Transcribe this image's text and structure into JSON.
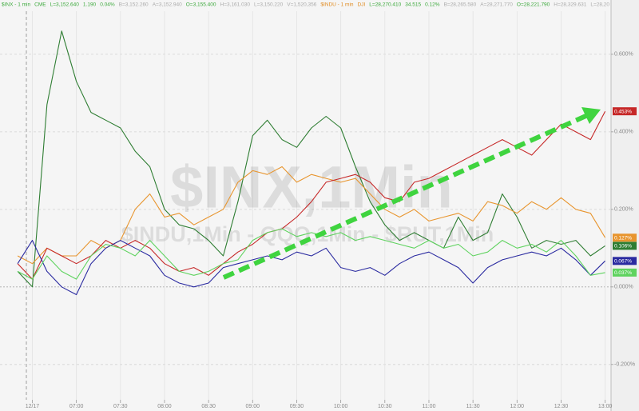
{
  "chart_data": {
    "type": "line",
    "header": [
      {
        "text": "$INX - 1 min",
        "color": "#3aa83a"
      },
      {
        "text": "CME",
        "color": "#3aa83a"
      },
      {
        "text": "L=3,152.640",
        "color": "#3aa83a"
      },
      {
        "text": "1.190",
        "color": "#3aa83a"
      },
      {
        "text": "0.04%",
        "color": "#3aa83a"
      },
      {
        "text": "B=3,152.260",
        "color": "#aaaaaa"
      },
      {
        "text": "A=3,152.940",
        "color": "#aaaaaa"
      },
      {
        "text": "O=3,155.400",
        "color": "#3aa83a"
      },
      {
        "text": "H=3,161.030",
        "color": "#aaaaaa"
      },
      {
        "text": "L=3,150.220",
        "color": "#aaaaaa"
      },
      {
        "text": "V=1,520,356",
        "color": "#aaaaaa"
      },
      {
        "text": "$INDU - 1 min",
        "color": "#e08a1e"
      },
      {
        "text": "DJI",
        "color": "#e08a1e"
      },
      {
        "text": "L=28,270.410",
        "color": "#3aa83a"
      },
      {
        "text": "34.515",
        "color": "#3aa83a"
      },
      {
        "text": "0.12%",
        "color": "#3aa83a"
      },
      {
        "text": "B=28,265.580",
        "color": "#aaaaaa"
      },
      {
        "text": "A=28,271.770",
        "color": "#aaaaaa"
      },
      {
        "text": "O=28,221.790",
        "color": "#3aa83a"
      },
      {
        "text": "H=28,329.631",
        "color": "#aaaaaa"
      },
      {
        "text": "L=28,20",
        "color": "#aaaaaa"
      }
    ],
    "watermark": "$INX,1Min",
    "watermark_sub": "$INDU,1Min - QQQ,1Min - $RUT,1Min",
    "x": [
      380,
      390,
      400,
      410,
      420,
      430,
      440,
      450,
      460,
      470,
      480,
      490,
      500,
      510,
      520,
      530,
      540,
      550,
      560,
      570,
      580,
      590,
      600,
      610,
      620,
      630,
      640,
      650,
      660,
      670,
      680,
      690,
      700,
      710,
      720,
      730,
      740,
      750,
      760,
      770,
      780
    ],
    "xlim": [
      368,
      784
    ],
    "xticks": [
      {
        "value": 390,
        "label": "12/17"
      },
      {
        "value": 420,
        "label": "07:00"
      },
      {
        "value": 450,
        "label": "07:30"
      },
      {
        "value": 480,
        "label": "08:00"
      },
      {
        "value": 510,
        "label": "08:30"
      },
      {
        "value": 540,
        "label": "09:00"
      },
      {
        "value": 570,
        "label": "09:30"
      },
      {
        "value": 600,
        "label": "10:00"
      },
      {
        "value": 630,
        "label": "10:30"
      },
      {
        "value": 660,
        "label": "11:00"
      },
      {
        "value": 690,
        "label": "11:30"
      },
      {
        "value": 720,
        "label": "12:00"
      },
      {
        "value": 750,
        "label": "12:30"
      },
      {
        "value": 780,
        "label": "13:00"
      }
    ],
    "ylim": [
      -0.32,
      0.74
    ],
    "yticks": [
      {
        "value": -0.2,
        "label": "-0.200%"
      },
      {
        "value": 0,
        "label": "0.000%"
      },
      {
        "value": 0.2,
        "label": "0.200%"
      },
      {
        "value": 0.4,
        "label": "0.400%"
      },
      {
        "value": 0.6,
        "label": "0.600%"
      }
    ],
    "grid": true,
    "series": [
      {
        "color": "#2e7d32",
        "end_label": "0.106%",
        "values": [
          0.04,
          0.0,
          0.47,
          0.66,
          0.53,
          0.45,
          0.43,
          0.41,
          0.35,
          0.31,
          0.2,
          0.16,
          0.15,
          0.12,
          0.08,
          0.22,
          0.39,
          0.43,
          0.38,
          0.36,
          0.41,
          0.44,
          0.41,
          0.31,
          0.22,
          0.16,
          0.12,
          0.14,
          0.12,
          0.1,
          0.18,
          0.12,
          0.14,
          0.24,
          0.18,
          0.1,
          0.12,
          0.11,
          0.12,
          0.08,
          0.106
        ]
      },
      {
        "color": "#e8952e",
        "end_label": "0.127%",
        "values": [
          0.08,
          0.06,
          0.1,
          0.08,
          0.08,
          0.12,
          0.1,
          0.12,
          0.2,
          0.24,
          0.18,
          0.19,
          0.16,
          0.18,
          0.2,
          0.27,
          0.3,
          0.29,
          0.31,
          0.27,
          0.29,
          0.28,
          0.27,
          0.28,
          0.24,
          0.2,
          0.18,
          0.2,
          0.17,
          0.18,
          0.19,
          0.17,
          0.22,
          0.21,
          0.19,
          0.22,
          0.2,
          0.23,
          0.2,
          0.19,
          0.127
        ]
      },
      {
        "color": "#c62828",
        "end_label": "0.453%",
        "values": [
          0.06,
          0.02,
          0.1,
          0.08,
          0.06,
          0.08,
          0.12,
          0.1,
          0.12,
          0.1,
          0.06,
          0.04,
          0.05,
          0.03,
          0.06,
          0.09,
          0.11,
          0.14,
          0.15,
          0.18,
          0.22,
          0.27,
          0.28,
          0.29,
          0.27,
          0.23,
          0.22,
          0.27,
          0.28,
          0.3,
          0.32,
          0.34,
          0.36,
          0.38,
          0.36,
          0.34,
          0.38,
          0.42,
          0.4,
          0.38,
          0.453
        ]
      },
      {
        "color": "#2a2aa0",
        "end_label": "0.067%",
        "values": [
          0.06,
          0.12,
          0.04,
          0.0,
          -0.02,
          0.06,
          0.1,
          0.12,
          0.1,
          0.08,
          0.03,
          0.01,
          0.0,
          0.01,
          0.05,
          0.06,
          0.07,
          0.08,
          0.07,
          0.09,
          0.08,
          0.1,
          0.05,
          0.04,
          0.05,
          0.03,
          0.06,
          0.08,
          0.09,
          0.07,
          0.05,
          0.01,
          0.05,
          0.07,
          0.08,
          0.09,
          0.08,
          0.1,
          0.07,
          0.03,
          0.067
        ]
      },
      {
        "color": "#5fd35f",
        "end_label": "0.037%",
        "values": [
          0.04,
          0.02,
          0.08,
          0.04,
          0.02,
          0.08,
          0.11,
          0.1,
          0.08,
          0.12,
          0.08,
          0.04,
          0.03,
          0.04,
          0.06,
          0.07,
          0.12,
          0.14,
          0.15,
          0.13,
          0.14,
          0.13,
          0.14,
          0.12,
          0.13,
          0.12,
          0.11,
          0.1,
          0.12,
          0.1,
          0.11,
          0.08,
          0.09,
          0.12,
          0.1,
          0.11,
          0.09,
          0.12,
          0.08,
          0.03,
          0.037
        ]
      }
    ]
  }
}
